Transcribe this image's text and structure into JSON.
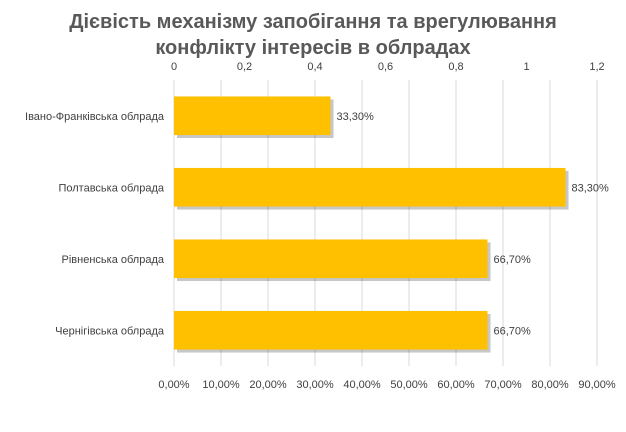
{
  "chart_data": {
    "type": "bar",
    "orientation": "horizontal",
    "title_lines": [
      "Дієвість механізму запобігання  та врегулювання",
      "конфлікту  інтересів в облрадах"
    ],
    "categories": [
      "Івано-Франківська облрада",
      "Полтавська облрада",
      "Рівненська облрада",
      "Чернігівська облрада"
    ],
    "values": [
      0.333,
      0.833,
      0.667,
      0.667
    ],
    "data_labels": [
      "33,30%",
      "83,30%",
      "66,70%",
      "66,70%"
    ],
    "bar_color": "#FFC000",
    "xlim": [
      0,
      0.9
    ],
    "bottom_axis_ticks": [
      "0,00%",
      "10,00%",
      "20,00%",
      "30,00%",
      "40,00%",
      "50,00%",
      "60,00%",
      "70,00%",
      "80,00%",
      "90,00%"
    ],
    "top_axis_ticks": [
      "0",
      "0,2",
      "0,4",
      "0,6",
      "0,8",
      "1",
      "1,2"
    ],
    "top_axis_max": 1.2,
    "grid": true,
    "legend": "none"
  }
}
